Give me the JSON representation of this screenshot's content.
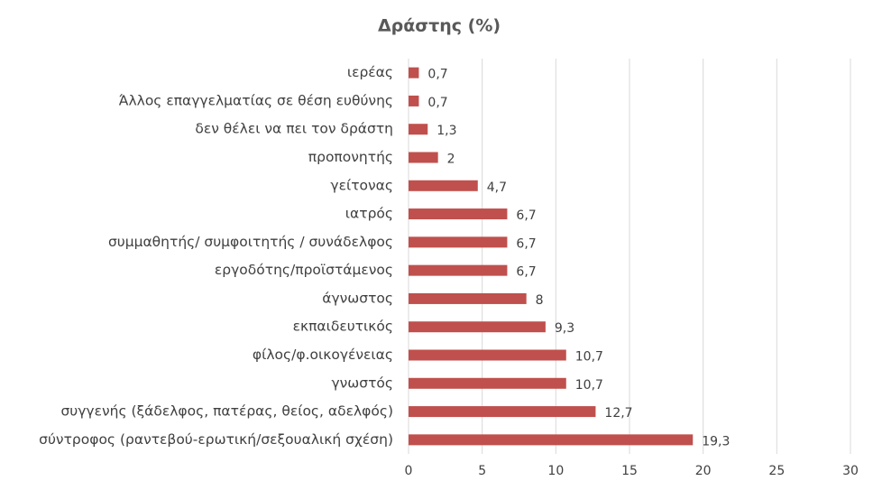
{
  "chart_data": {
    "type": "bar",
    "orientation": "horizontal",
    "title": "Δράστης (%)",
    "categories": [
      "ιερέας",
      "Άλλος επαγγελματίας σε θέση ευθύνης",
      "δεν θέλει να πει τον δράστη",
      "προπονητής",
      "γείτονας",
      "ιατρός",
      "συμμαθητής/ συμφοιτητής / συνάδελφος",
      "εργοδότης/προϊστάμενος",
      "άγνωστος",
      "εκπαιδευτικός",
      "φίλος/φ.οικογένειας",
      "γνωστός",
      "συγγενής (ξάδελφος, πατέρας, θείος, αδελφός)",
      "σύντροφος (ραντεβού-ερωτική/σεξουαλική σχέση)"
    ],
    "values": [
      0.7,
      0.7,
      1.3,
      2,
      4.7,
      6.7,
      6.7,
      6.7,
      8,
      9.3,
      10.7,
      10.7,
      12.7,
      19.3
    ],
    "value_labels": [
      "0,7",
      "0,7",
      "1,3",
      "2",
      "4,7",
      "6,7",
      "6,7",
      "6,7",
      "8",
      "9,3",
      "10,7",
      "10,7",
      "12,7",
      "19,3"
    ],
    "color": "#c0504d",
    "xlim": [
      0,
      30
    ],
    "xticks": [
      0,
      5,
      10,
      15,
      20,
      25,
      30
    ],
    "grid": true
  }
}
